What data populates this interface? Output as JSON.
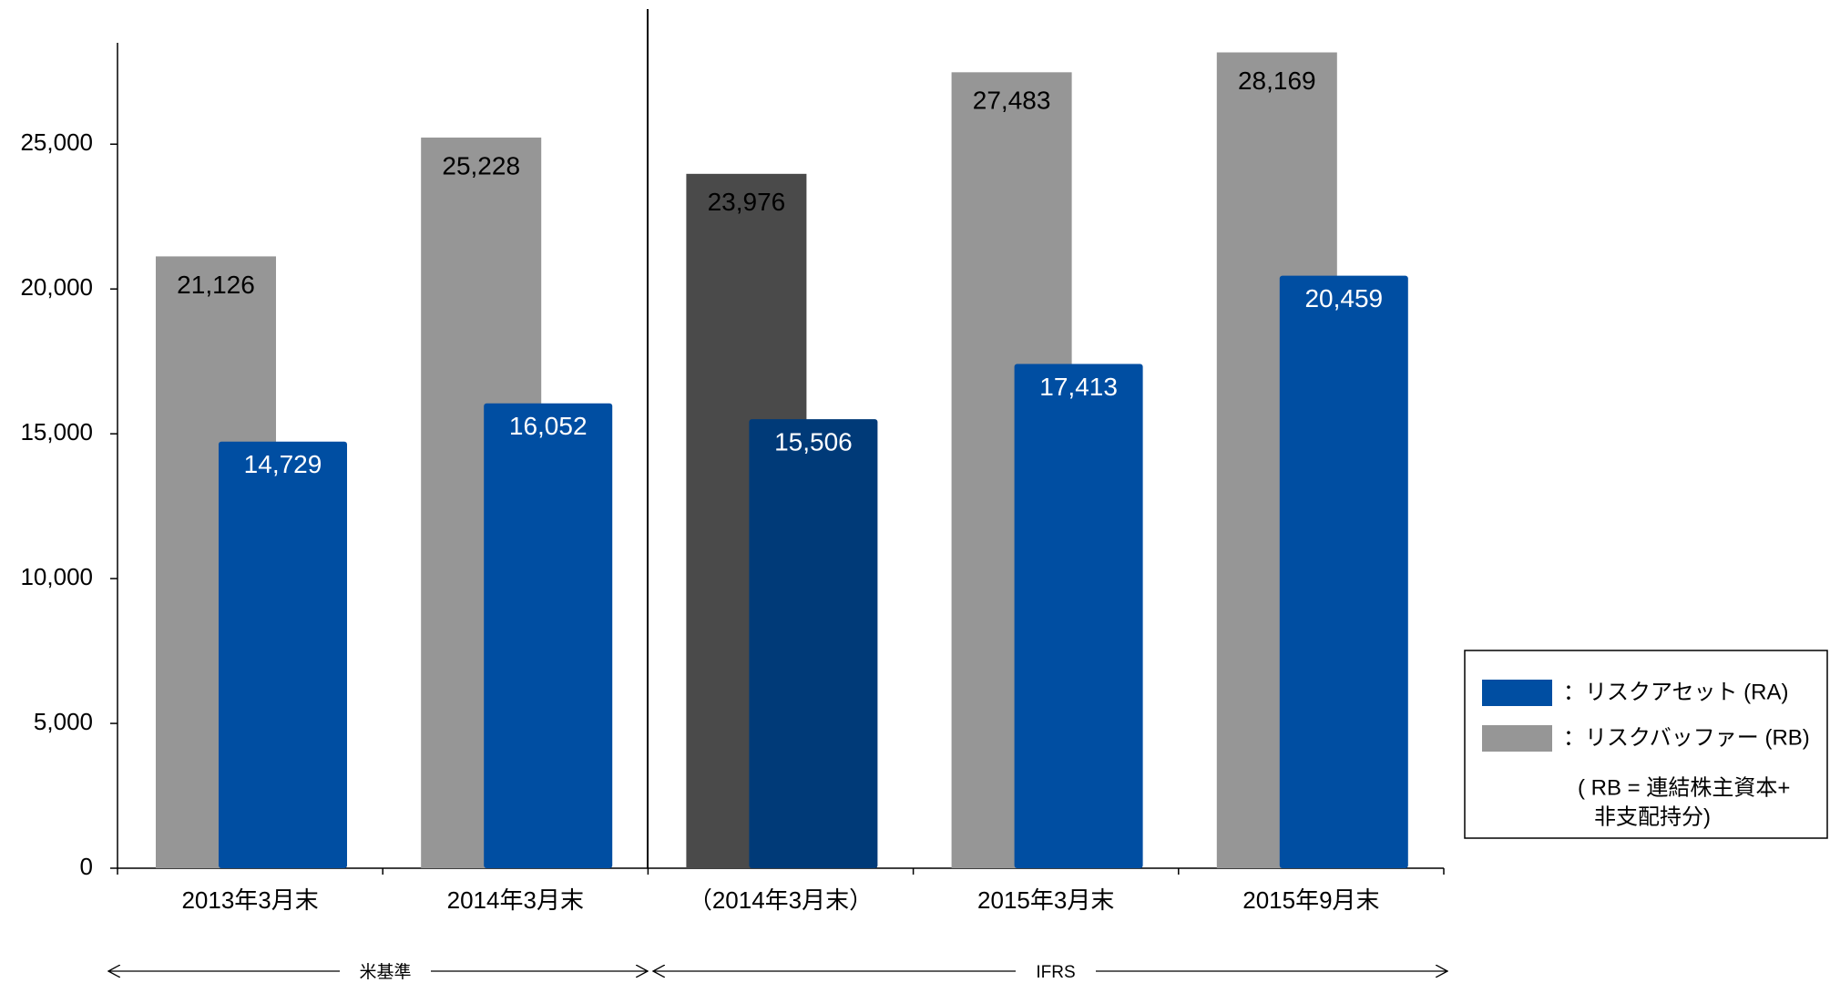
{
  "chart_data": {
    "type": "bar",
    "categories": [
      "2013年3月末",
      "2014年3月末",
      "（2014年3月末）",
      "2015年3月末",
      "2015年9月末"
    ],
    "series": [
      {
        "name": "：リスクバッファー (RB)",
        "color": "#969696",
        "colors": [
          "#969696",
          "#969696",
          "#4a4a4a",
          "#969696",
          "#969696"
        ],
        "values": [
          21126,
          25228,
          23976,
          27483,
          28169
        ],
        "value_labels": [
          "21,126",
          "25,228",
          "23,976",
          "27,483",
          "28,169"
        ]
      },
      {
        "name": "：リスクアセット (RA)",
        "color": "#004ea2",
        "colors": [
          "#004ea2",
          "#004ea2",
          "#003a78",
          "#004ea2",
          "#004ea2"
        ],
        "values": [
          14729,
          16052,
          15506,
          17413,
          20459
        ],
        "value_labels": [
          "14,729",
          "16,052",
          "15,506",
          "17,413",
          "20,459"
        ]
      }
    ],
    "ylim": [
      0,
      28500
    ],
    "yticks": [
      0,
      {
        "value": 5000,
        "label": "5,000"
      },
      {
        "value": 10000,
        "label": "10,000"
      },
      {
        "value": 15000,
        "label": "15,000"
      },
      {
        "value": 20000,
        "label": "20,000"
      },
      {
        "value": 25000,
        "label": "25,000"
      }
    ],
    "grid": false,
    "legend": "right",
    "legend_note": [
      "( RB = 連結株主資本+",
      "非支配持分)"
    ],
    "periods": [
      "米基準",
      "IFRS"
    ]
  }
}
